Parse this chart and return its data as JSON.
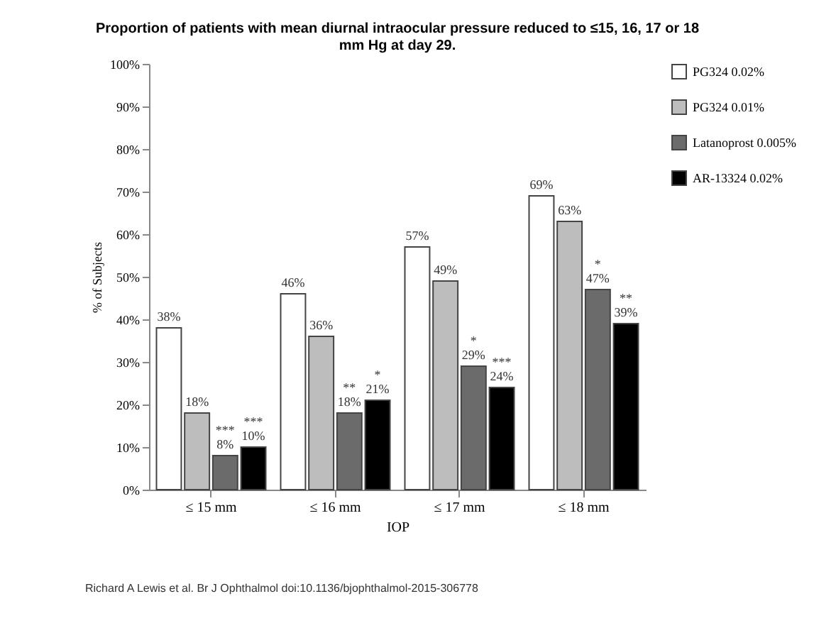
{
  "chart_data": {
    "type": "bar",
    "title": "Proportion of patients with mean diurnal intraocular pressure reduced to ≤15, 16, 17 or 18 mm Hg at day 29.",
    "xlabel": "IOP",
    "ylabel": "% of Subjects",
    "categories": [
      "≤ 15 mm",
      "≤ 16 mm",
      "≤ 17 mm",
      "≤ 18 mm"
    ],
    "series": [
      {
        "name": "PG324 0.02%",
        "color": "#ffffff",
        "values": [
          38,
          46,
          57,
          69
        ],
        "value_labels": [
          "38%",
          "46%",
          "57%",
          "69%"
        ]
      },
      {
        "name": "PG324 0.01%",
        "color": "#bdbdbd",
        "values": [
          18,
          36,
          49,
          63
        ],
        "value_labels": [
          "18%",
          "36%",
          "49%",
          "63%"
        ]
      },
      {
        "name": "Latanoprost 0.005%",
        "color": "#6b6b6b",
        "values": [
          8,
          18,
          29,
          47
        ],
        "value_labels": [
          "***\n8%",
          "**\n18%",
          "*\n29%",
          "*\n47%"
        ]
      },
      {
        "name": "AR-13324 0.02%",
        "color": "#000000",
        "values": [
          10,
          21,
          24,
          39
        ],
        "value_labels": [
          "***\n10%",
          "*\n21%",
          "***\n24%",
          "**\n39%"
        ]
      }
    ],
    "ylim": [
      0,
      100
    ],
    "yticks": [
      {
        "value": 0,
        "label": "0%"
      },
      {
        "value": 10,
        "label": "10%"
      },
      {
        "value": 20,
        "label": "20%"
      },
      {
        "value": 30,
        "label": "30%"
      },
      {
        "value": 40,
        "label": "40%"
      },
      {
        "value": 50,
        "label": "50%"
      },
      {
        "value": 60,
        "label": "60%"
      },
      {
        "value": 70,
        "label": "70%"
      },
      {
        "value": 80,
        "label": "80%"
      },
      {
        "value": 90,
        "label": "90%"
      },
      {
        "value": 100,
        "label": "100%"
      }
    ],
    "grid": false,
    "legend": "right",
    "annotations": [
      "Richard A Lewis et al. Br J Ophthalmol doi:10.1136/bjophthalmol-2015-306778"
    ]
  }
}
